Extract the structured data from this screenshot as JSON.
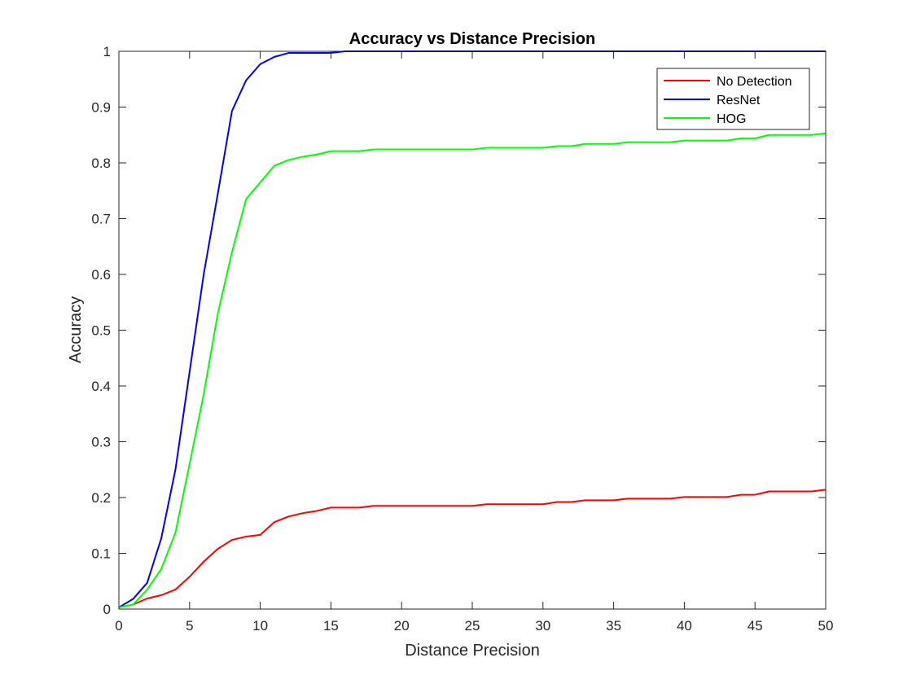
{
  "chart_data": {
    "type": "line",
    "title": "Accuracy vs Distance Precision",
    "xlabel": "Distance Precision",
    "ylabel": "Accuracy",
    "xlim": [
      0,
      50
    ],
    "ylim": [
      0,
      1
    ],
    "x_ticks": [
      "0",
      "5",
      "10",
      "15",
      "20",
      "25",
      "30",
      "35",
      "40",
      "45",
      "50"
    ],
    "y_ticks": [
      "0",
      "0.1",
      "0.2",
      "0.3",
      "0.4",
      "0.5",
      "0.6",
      "0.7",
      "0.8",
      "0.9",
      "1"
    ],
    "grid": false,
    "legend_position": "top-right",
    "x": [
      0,
      1,
      2,
      3,
      4,
      5,
      6,
      7,
      8,
      9,
      10,
      11,
      12,
      13,
      14,
      15,
      16,
      17,
      18,
      19,
      20,
      21,
      22,
      23,
      24,
      25,
      26,
      27,
      28,
      29,
      30,
      31,
      32,
      33,
      34,
      35,
      36,
      37,
      38,
      39,
      40,
      41,
      42,
      43,
      44,
      45,
      46,
      47,
      48,
      49,
      50
    ],
    "series": [
      {
        "name": "No Detection",
        "color": "#ff0000",
        "values": [
          0.003,
          0.008,
          0.019,
          0.025,
          0.035,
          0.058,
          0.085,
          0.108,
          0.124,
          0.13,
          0.133,
          0.156,
          0.166,
          0.172,
          0.176,
          0.182,
          0.182,
          0.182,
          0.185,
          0.185,
          0.185,
          0.185,
          0.185,
          0.185,
          0.185,
          0.185,
          0.188,
          0.188,
          0.188,
          0.188,
          0.188,
          0.192,
          0.192,
          0.195,
          0.195,
          0.195,
          0.198,
          0.198,
          0.198,
          0.198,
          0.201,
          0.201,
          0.201,
          0.201,
          0.205,
          0.205,
          0.211,
          0.211,
          0.211,
          0.211,
          0.214
        ]
      },
      {
        "name": "ResNet",
        "color": "#0000ff",
        "values": [
          0.003,
          0.018,
          0.047,
          0.127,
          0.25,
          0.425,
          0.6,
          0.745,
          0.893,
          0.948,
          0.977,
          0.99,
          0.997,
          0.997,
          0.997,
          0.997,
          1.0,
          1.0,
          1.0,
          1.0,
          1.0,
          1.0,
          1.0,
          1.0,
          1.0,
          1.0,
          1.0,
          1.0,
          1.0,
          1.0,
          1.0,
          1.0,
          1.0,
          1.0,
          1.0,
          1.0,
          1.0,
          1.0,
          1.0,
          1.0,
          1.0,
          1.0,
          1.0,
          1.0,
          1.0,
          1.0,
          1.0,
          1.0,
          1.0,
          1.0,
          1.0
        ]
      },
      {
        "name": "HOG",
        "color": "#00ff00",
        "values": [
          0.003,
          0.008,
          0.035,
          0.072,
          0.137,
          0.26,
          0.385,
          0.53,
          0.64,
          0.735,
          0.765,
          0.795,
          0.805,
          0.811,
          0.815,
          0.821,
          0.821,
          0.821,
          0.824,
          0.824,
          0.824,
          0.824,
          0.824,
          0.824,
          0.824,
          0.824,
          0.827,
          0.827,
          0.827,
          0.827,
          0.827,
          0.83,
          0.83,
          0.834,
          0.834,
          0.834,
          0.837,
          0.837,
          0.837,
          0.837,
          0.84,
          0.84,
          0.84,
          0.84,
          0.844,
          0.844,
          0.85,
          0.85,
          0.85,
          0.85,
          0.853
        ]
      }
    ]
  }
}
